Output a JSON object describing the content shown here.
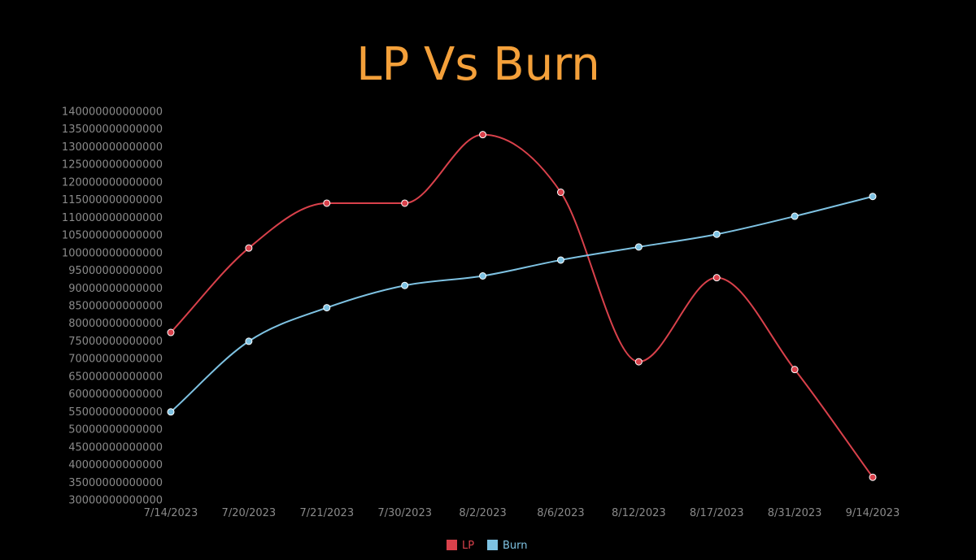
{
  "chart_data": {
    "type": "line",
    "title": "LP Vs Burn",
    "xlabel": "",
    "ylabel": "",
    "categories": [
      "7/14/2023",
      "7/20/2023",
      "7/21/2023",
      "7/30/2023",
      "8/2/2023",
      "8/6/2023",
      "8/12/2023",
      "8/17/2023",
      "8/31/2023",
      "9/14/2023"
    ],
    "ylim": [
      30000000000000,
      140000000000000
    ],
    "yticks": [
      "140000000000000",
      "135000000000000",
      "130000000000000",
      "125000000000000",
      "120000000000000",
      "115000000000000",
      "110000000000000",
      "105000000000000",
      "100000000000000",
      "95000000000000",
      "90000000000000",
      "85000000000000",
      "80000000000000",
      "75000000000000",
      "70000000000000",
      "65000000000000",
      "60000000000000",
      "55000000000000",
      "50000000000000",
      "45000000000000",
      "40000000000000",
      "35000000000000",
      "30000000000000"
    ],
    "grid": false,
    "legend_position": "bottom",
    "series": [
      {
        "name": "LP",
        "color": "#d9414b",
        "values": [
          77400000000000,
          101300000000000,
          114000000000000,
          114000000000000,
          133400000000000,
          117100000000000,
          69100000000000,
          92900000000000,
          66900000000000,
          36400000000000
        ]
      },
      {
        "name": "Burn",
        "color": "#7ec2e2",
        "values": [
          54900000000000,
          74900000000000,
          84400000000000,
          90700000000000,
          93400000000000,
          97900000000000,
          101600000000000,
          105200000000000,
          110300000000000,
          115900000000000
        ]
      }
    ]
  }
}
